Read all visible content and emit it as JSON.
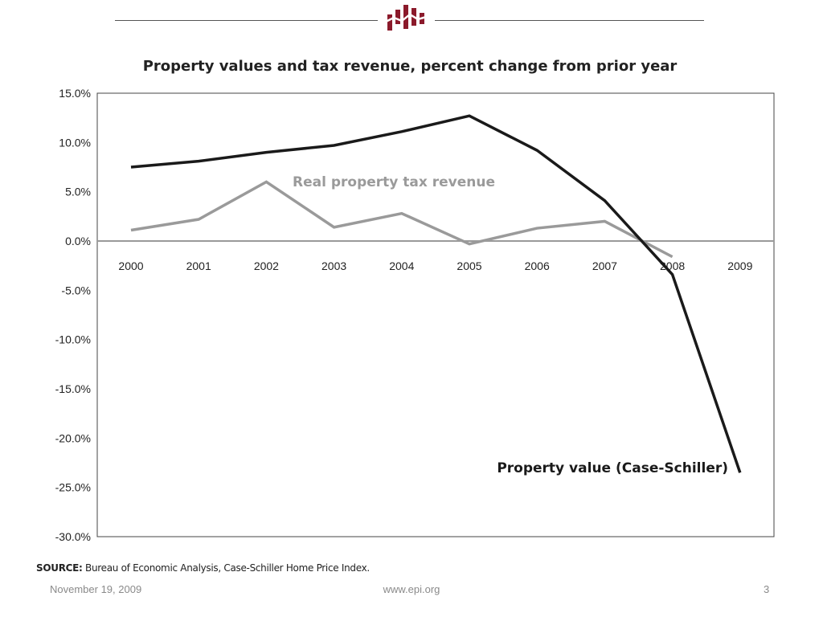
{
  "header": {
    "logo_icon": "epi-bar-logo-icon",
    "logo_color": "#8b1a2b"
  },
  "chart_data": {
    "type": "line",
    "title": "Property values and tax revenue, percent change from prior year",
    "categories": [
      "2000",
      "2001",
      "2002",
      "2003",
      "2004",
      "2005",
      "2006",
      "2007",
      "2008",
      "2009"
    ],
    "ylim": [
      -30,
      15
    ],
    "yticks": [
      15,
      10,
      5,
      0,
      -5,
      -10,
      -15,
      -20,
      -25,
      -30
    ],
    "ytick_labels": [
      "15.0%",
      "10.0%",
      "5.0%",
      "0.0%",
      "-5.0%",
      "-10.0%",
      "-15.0%",
      "-20.0%",
      "-25.0%",
      "-30.0%"
    ],
    "grid": false,
    "series": [
      {
        "name": "Property value (Case-Schiller)",
        "color": "#1a1a1a",
        "values": [
          7.5,
          8.1,
          9.0,
          9.7,
          11.1,
          12.7,
          9.2,
          4.1,
          -3.4,
          -23.5
        ]
      },
      {
        "name": "Real property tax revenue",
        "color": "#9a9a9a",
        "values": [
          1.1,
          2.2,
          6.0,
          1.4,
          2.8,
          -0.3,
          1.3,
          2.0,
          -1.6,
          null
        ]
      }
    ]
  },
  "source": {
    "label": "SOURCE:",
    "text": " Bureau of Economic Analysis, Case-Schiller Home Price Index."
  },
  "footer": {
    "date": "November 19, 2009",
    "url": "www.epi.org",
    "page": "3"
  }
}
